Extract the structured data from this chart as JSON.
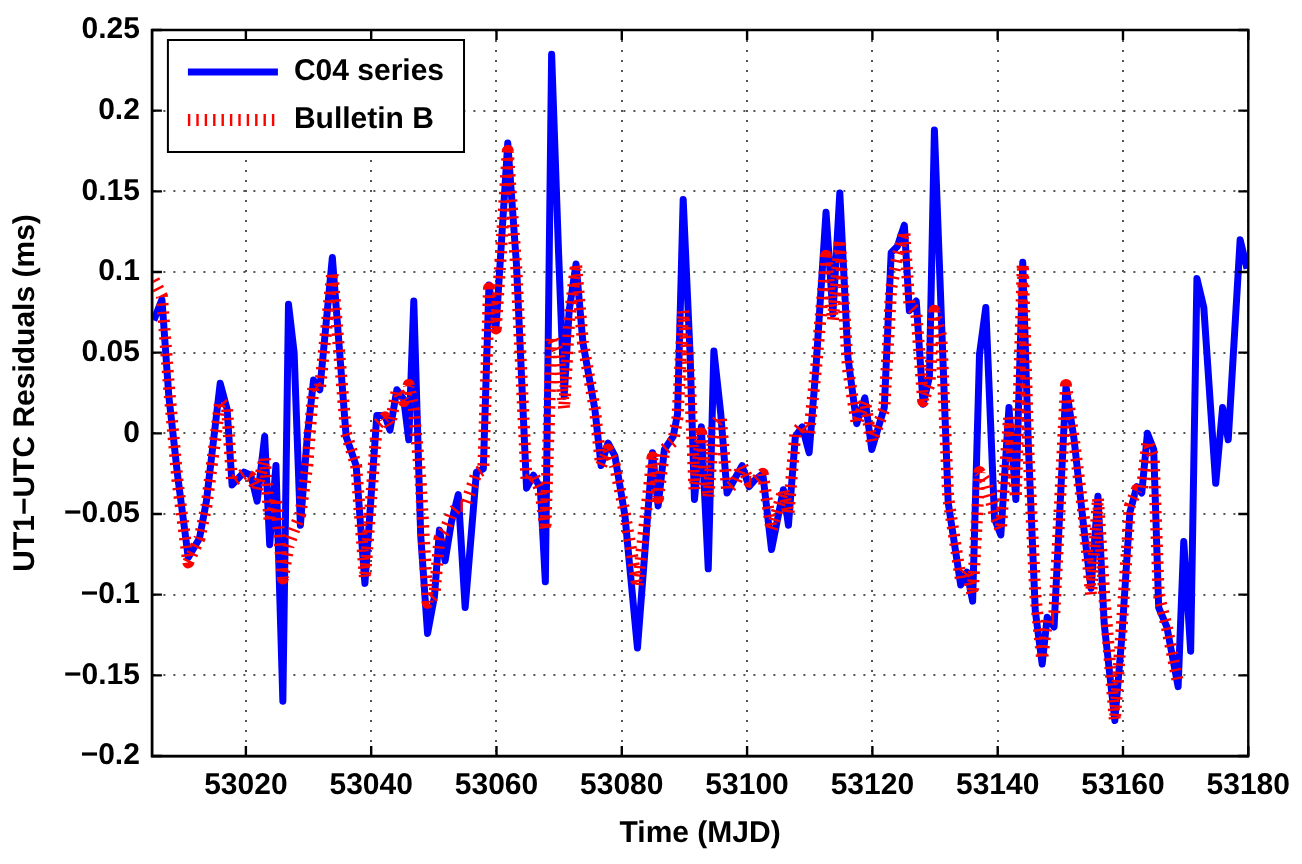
{
  "chart_data": {
    "type": "line",
    "xlabel": "Time (MJD)",
    "ylabel": "UT1−UTC Residuals (ms)",
    "xlim": [
      53005,
      53180
    ],
    "xticks": [
      53020,
      53040,
      53060,
      53080,
      53100,
      53120,
      53140,
      53160,
      53180
    ],
    "ylim": [
      -0.2,
      0.25
    ],
    "yticks": [
      {
        "value": -0.2,
        "label": "−0.2"
      },
      {
        "value": -0.15,
        "label": "−0.15"
      },
      {
        "value": -0.1,
        "label": "−0.1"
      },
      {
        "value": -0.05,
        "label": "−0.05"
      },
      0,
      0.05,
      0.1,
      0.15,
      0.2,
      0.25
    ],
    "grid": true,
    "legend": "top left",
    "marker": "none",
    "series": [
      {
        "name": "C04 series",
        "color": "#0000ff",
        "line_style": "solid",
        "x": [
          53005.3,
          53006.6,
          53007.7,
          53009.1,
          53010.8,
          53012.6,
          53013.7,
          53015.9,
          53017,
          53017.8,
          53019.7,
          53020.8,
          53021.8,
          53023,
          53023.8,
          53024.8,
          53025.9,
          53026.8,
          53027.7,
          53028.7,
          53029.8,
          53030.8,
          53031.8,
          53033.8,
          53036,
          53037.6,
          53039,
          53040.9,
          53042.2,
          53043,
          53044.1,
          53045.2,
          53046,
          53046.8,
          53047.9,
          53049,
          53050.1,
          53050.9,
          53051.8,
          53052.8,
          53053.9,
          53055,
          53056.8,
          53057.9,
          53058.8,
          53059.9,
          53061.8,
          53063.2,
          53064.8,
          53065.9,
          53067,
          53067.8,
          53068.8,
          53069.9,
          53070.8,
          53071.6,
          53072.7,
          53073.8,
          53075.7,
          53076.7,
          53077.8,
          53078.9,
          53080.5,
          53082.5,
          53084.9,
          53085.8,
          53086.8,
          53088.2,
          53088.9,
          53089.8,
          53090.9,
          53091.6,
          53092.7,
          53093.8,
          53094.7,
          53095.8,
          53096.8,
          53098.2,
          53099.2,
          53100.3,
          53101.2,
          53102.5,
          53103.9,
          53105.8,
          53106.6,
          53107.7,
          53108.8,
          53109.9,
          53111,
          53112.6,
          53113.7,
          53114.8,
          53116.1,
          53117.5,
          53118.8,
          53119.9,
          53121.9,
          53123,
          53124,
          53125.1,
          53125.9,
          53127,
          53128.1,
          53129.1,
          53129.9,
          53131,
          53132.1,
          53134.1,
          53135.1,
          53136,
          53137.1,
          53138.1,
          53139.5,
          53140.5,
          53141.8,
          53142.9,
          53144,
          53144.9,
          53146,
          53147.1,
          53147.9,
          53149,
          53150.9,
          53152.2,
          53153.7,
          53154.9,
          53156,
          53157,
          53158.7,
          53159.8,
          53161.1,
          53162.2,
          53163,
          53163.9,
          53164.9,
          53165.7,
          53167,
          53168.8,
          53169.7,
          53170.8,
          53171.8,
          53172.9,
          53174.8,
          53175.9,
          53176.8,
          53178.7,
          53179.8
        ],
        "values": [
          0.07,
          0.083,
          0.023,
          -0.026,
          -0.077,
          -0.065,
          -0.042,
          0.031,
          0.015,
          -0.032,
          -0.024,
          -0.026,
          -0.042,
          -0.002,
          -0.069,
          -0.02,
          -0.166,
          0.08,
          0.05,
          -0.057,
          -0.002,
          0.033,
          0.027,
          0.109,
          -0.002,
          -0.02,
          -0.093,
          0.011,
          0.011,
          0.002,
          0.027,
          0.021,
          -0.004,
          0.082,
          -0.063,
          -0.124,
          -0.101,
          -0.06,
          -0.079,
          -0.055,
          -0.038,
          -0.108,
          -0.024,
          -0.022,
          0.092,
          0.064,
          0.18,
          0.104,
          -0.034,
          -0.026,
          -0.034,
          -0.092,
          0.235,
          0.113,
          0.023,
          0.076,
          0.105,
          0.056,
          0.015,
          -0.02,
          -0.006,
          -0.014,
          -0.051,
          -0.133,
          -0.012,
          -0.045,
          -0.01,
          -0.002,
          0.012,
          0.145,
          0.049,
          -0.041,
          0.004,
          -0.084,
          0.051,
          0.012,
          -0.037,
          -0.027,
          -0.02,
          -0.033,
          -0.029,
          -0.025,
          -0.072,
          -0.035,
          -0.057,
          -0.002,
          0.004,
          -0.012,
          0.041,
          0.137,
          0.074,
          0.149,
          0.047,
          0.006,
          0.022,
          -0.01,
          0.016,
          0.112,
          0.116,
          0.129,
          0.076,
          0.082,
          0.018,
          0.035,
          0.188,
          0.073,
          -0.043,
          -0.094,
          -0.086,
          -0.104,
          0.049,
          0.078,
          -0.053,
          -0.063,
          0.016,
          -0.041,
          0.106,
          -0.008,
          -0.11,
          -0.143,
          -0.114,
          -0.12,
          0.029,
          -0.004,
          -0.057,
          -0.096,
          -0.039,
          -0.118,
          -0.178,
          -0.127,
          -0.049,
          -0.033,
          -0.037,
          0,
          -0.01,
          -0.108,
          -0.12,
          -0.157,
          -0.067,
          -0.135,
          0.096,
          0.078,
          -0.031,
          0.016,
          -0.004,
          0.12,
          0.102
        ]
      },
      {
        "name": "Bulletin B",
        "color": "#ff0000",
        "line_style": "dotted",
        "x": [
          53005.3,
          53006.6,
          53007.7,
          53009.1,
          53010.8,
          53012.6,
          53013.7,
          53015.9,
          53017,
          53017.8,
          53019.7,
          53020.8,
          53021.8,
          53023,
          53023.8,
          53024.8,
          53025.9,
          53026.8,
          53027.7,
          53028.7,
          53029.8,
          53030.8,
          53031.8,
          53033.8,
          53036,
          53037.6,
          53039,
          53040.9,
          53042.2,
          53043,
          53044.1,
          53045.2,
          53046,
          53046.8,
          53047.9,
          53049,
          53050.1,
          53050.9,
          53051.8,
          53052.8,
          53053.9,
          53055,
          53056.8,
          53057.9,
          53058.8,
          53059.9,
          53061.8,
          53063.2,
          53064.8,
          53065.9,
          53067,
          53067.8,
          53068.8,
          53069.9,
          53070.8,
          53071.6,
          53072.7,
          53073.8,
          53075.7,
          53076.7,
          53077.8,
          53078.9,
          53080.5,
          53082.5,
          53084.9,
          53085.8,
          53086.8,
          53088.2,
          53088.9,
          53089.8,
          53090.9,
          53091.6,
          53092.7,
          53093.8,
          53094.7,
          53095.8,
          53096.8,
          53098.2,
          53099.2,
          53100.3,
          53101.2,
          53102.5,
          53103.9,
          53105.8,
          53106.6,
          53107.7,
          53108.8,
          53109.9,
          53111,
          53112.6,
          53113.7,
          53114.8,
          53116.1,
          53117.5,
          53118.8,
          53119.9,
          53121.9,
          53123,
          53124,
          53125.1,
          53125.9,
          53127,
          53128.1,
          53129.1,
          53129.9,
          53131,
          53132.1,
          53134.1,
          53135.1,
          53136,
          53137.1,
          53138.1,
          53139.5,
          53140.5,
          53141.8,
          53142.9,
          53144,
          53144.9,
          53146,
          53147.1,
          53147.9,
          53149,
          53150.9,
          53152.2,
          53153.7,
          53154.9,
          53156,
          53157,
          53158.7,
          53159.8,
          53161.1,
          53162.2,
          53163,
          53163.9,
          53164.9,
          53165.7,
          53167,
          53168.8
        ],
        "values": [
          0.095,
          0.085,
          0.03,
          -0.03,
          -0.08,
          -0.065,
          -0.045,
          0.02,
          0.015,
          -0.03,
          -0.025,
          -0.027,
          -0.035,
          -0.015,
          -0.055,
          -0.04,
          -0.09,
          -0.07,
          -0.06,
          -0.05,
          -0.02,
          0.03,
          0.027,
          0.1,
          0,
          -0.02,
          -0.09,
          0.005,
          0.01,
          0.005,
          0.027,
          0.02,
          0.03,
          0.015,
          -0.03,
          -0.105,
          -0.1,
          -0.065,
          -0.06,
          -0.05,
          -0.045,
          -0.045,
          -0.025,
          -0.022,
          0.09,
          0.065,
          0.175,
          0.1,
          -0.03,
          -0.026,
          -0.035,
          -0.06,
          0.06,
          0.05,
          0.015,
          0.07,
          0.105,
          0.056,
          0.015,
          -0.02,
          -0.01,
          -0.02,
          -0.05,
          -0.095,
          -0.015,
          -0.04,
          -0.01,
          -0.005,
          0.01,
          0.076,
          0.03,
          -0.035,
          0,
          -0.04,
          0.005,
          0.01,
          -0.035,
          -0.03,
          -0.02,
          -0.03,
          -0.03,
          -0.025,
          -0.06,
          -0.035,
          -0.05,
          0,
          0.005,
          0,
          0.04,
          0.11,
          0.07,
          0.12,
          0.04,
          0.006,
          0.02,
          -0.005,
          0.015,
          0.09,
          0.11,
          0.125,
          0.08,
          0.075,
          0.02,
          0.03,
          0.076,
          0.06,
          -0.04,
          -0.09,
          -0.085,
          -0.1,
          -0.024,
          -0.03,
          -0.05,
          -0.06,
          0.01,
          -0.04,
          0.105,
          -0.01,
          -0.1,
          -0.14,
          -0.115,
          -0.115,
          0.03,
          -0.005,
          -0.05,
          -0.1,
          -0.04,
          -0.1,
          -0.178,
          -0.12,
          -0.045,
          -0.035,
          -0.035,
          -0.005,
          -0.015,
          -0.1,
          -0.12,
          -0.155
        ]
      }
    ]
  }
}
